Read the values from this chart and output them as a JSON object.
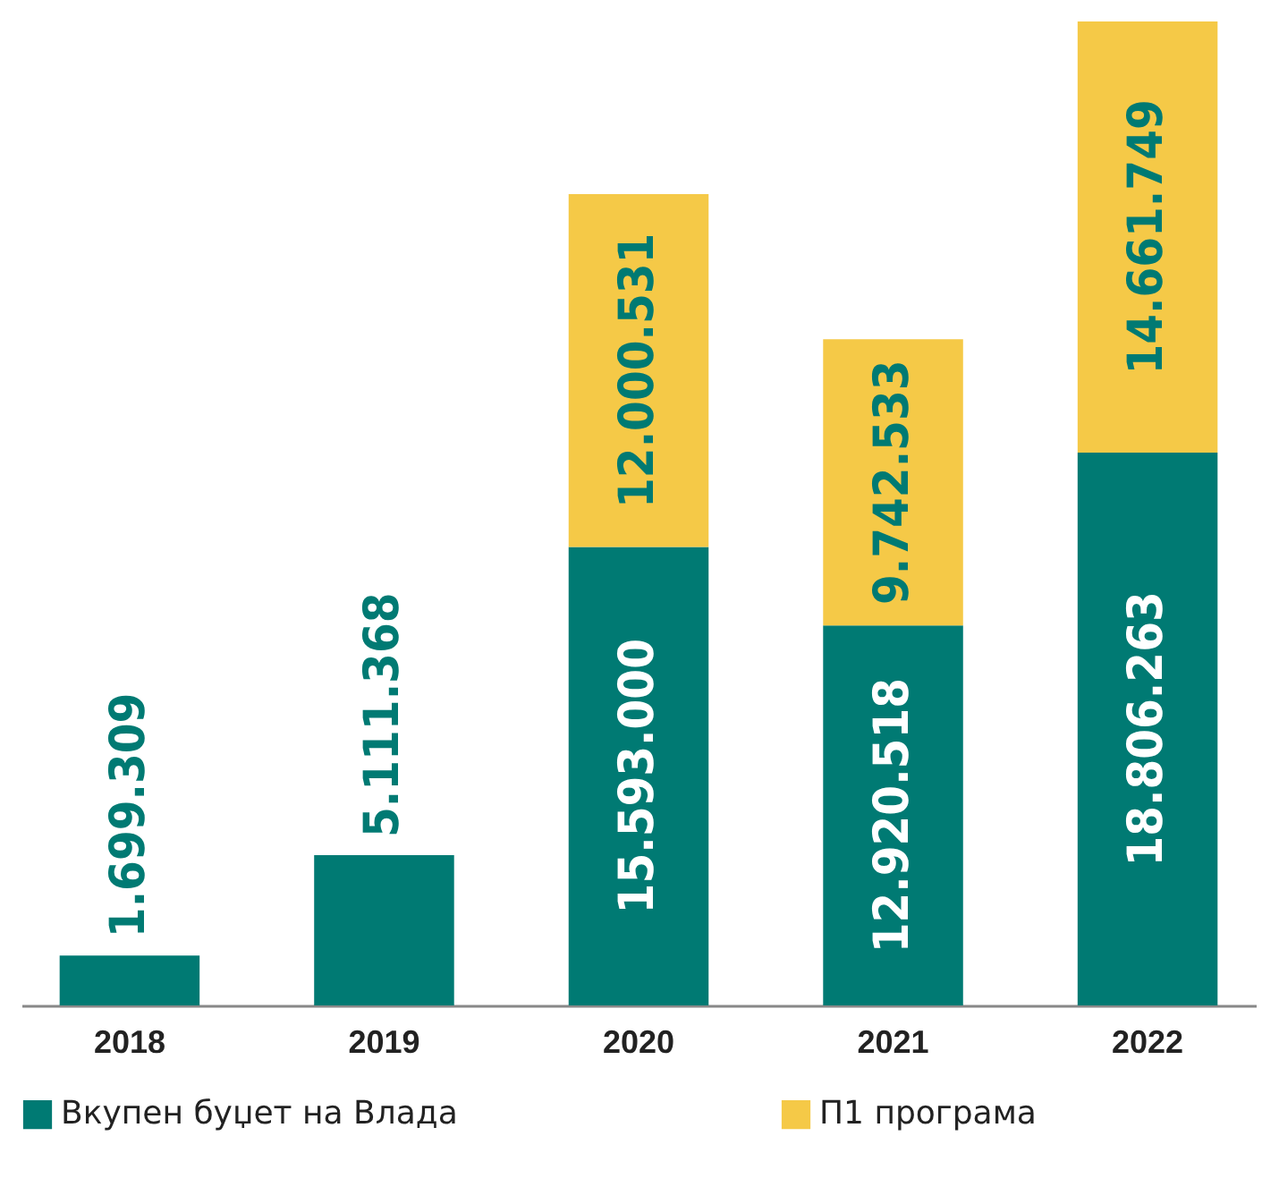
{
  "chart_data": {
    "type": "bar",
    "stacked": true,
    "categories": [
      "2018",
      "2019",
      "2020",
      "2021",
      "2022"
    ],
    "series": [
      {
        "name": "Вкупен буџет на Влада",
        "color": "#007a73",
        "values": [
          1699309,
          5111368,
          15593000,
          12920518,
          18806263
        ],
        "value_labels": [
          "1.699.309",
          "5.111.368",
          "15.593.000",
          "12.920.518",
          "18.806.263"
        ]
      },
      {
        "name": "П1 програма",
        "color": "#f5c947",
        "values": [
          null,
          null,
          12000531,
          9742533,
          14661749
        ],
        "value_labels": [
          null,
          null,
          "12.000.531",
          "9.742.533",
          "14.661.749"
        ]
      }
    ],
    "legend": "bottom",
    "grid": false
  }
}
